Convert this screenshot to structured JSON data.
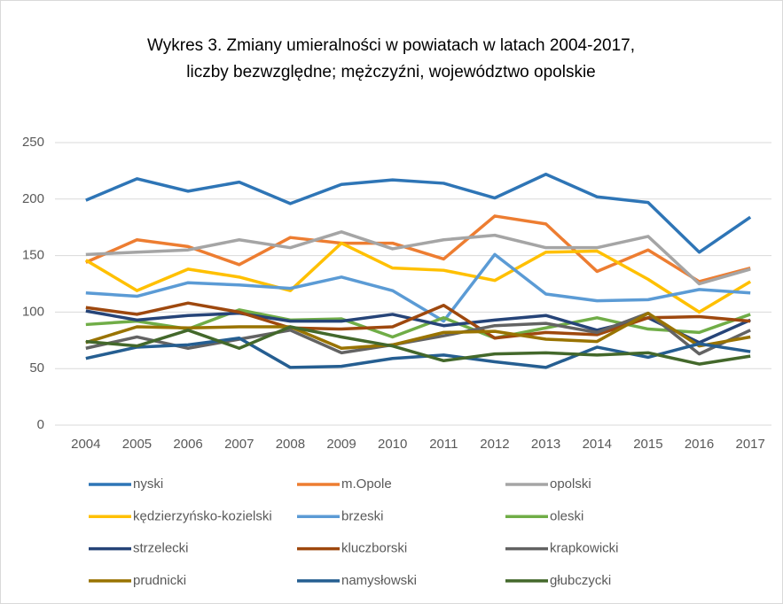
{
  "chart_data": {
    "type": "line",
    "title": [
      "Wykres 3. Zmiany umieralności w powiatach w latach 2004-2017,",
      "liczby bezwzględne; mężczyźni, województwo opolskie"
    ],
    "categories": [
      "2004",
      "2005",
      "2006",
      "2007",
      "2008",
      "2009",
      "2010",
      "2011",
      "2012",
      "2013",
      "2014",
      "2015",
      "2016",
      "2017"
    ],
    "ylim": [
      0,
      250
    ],
    "yticks": [
      0,
      50,
      100,
      150,
      200,
      250
    ],
    "grid": true,
    "legend": "bottom",
    "series": [
      {
        "name": "nyski",
        "color": "#2e75b6",
        "values": [
          199,
          218,
          207,
          215,
          196,
          213,
          217,
          214,
          201,
          222,
          202,
          197,
          153,
          184
        ]
      },
      {
        "name": "m.Opole",
        "color": "#ed7d31",
        "values": [
          144,
          164,
          158,
          142,
          166,
          161,
          161,
          147,
          185,
          178,
          136,
          155,
          127,
          139
        ]
      },
      {
        "name": "opolski",
        "color": "#a5a5a5",
        "values": [
          151,
          153,
          155,
          164,
          157,
          171,
          156,
          164,
          168,
          157,
          157,
          167,
          125,
          138
        ]
      },
      {
        "name": "kędzierzyńsko-kozielski",
        "color": "#ffc000",
        "values": [
          146,
          119,
          138,
          131,
          119,
          161,
          139,
          137,
          128,
          153,
          154,
          129,
          100,
          127
        ]
      },
      {
        "name": "brzeski",
        "color": "#5b9bd5",
        "values": [
          117,
          114,
          126,
          124,
          121,
          131,
          119,
          92,
          151,
          116,
          110,
          111,
          120,
          117
        ]
      },
      {
        "name": "oleski",
        "color": "#70ad47",
        "values": [
          89,
          92,
          85,
          102,
          93,
          94,
          78,
          95,
          77,
          86,
          95,
          85,
          82,
          98
        ]
      },
      {
        "name": "strzelecki",
        "color": "#264478",
        "values": [
          101,
          93,
          97,
          99,
          92,
          92,
          98,
          88,
          93,
          97,
          84,
          95,
          73,
          93
        ]
      },
      {
        "name": "kluczborski",
        "color": "#9e480e",
        "values": [
          104,
          98,
          108,
          100,
          86,
          85,
          87,
          106,
          77,
          82,
          80,
          95,
          96,
          92
        ]
      },
      {
        "name": "krapkowicki",
        "color": "#636363",
        "values": [
          68,
          78,
          68,
          76,
          84,
          64,
          71,
          79,
          88,
          90,
          82,
          99,
          63,
          84
        ]
      },
      {
        "name": "prudnicki",
        "color": "#997300",
        "values": [
          73,
          87,
          86,
          87,
          87,
          68,
          71,
          82,
          83,
          76,
          74,
          99,
          70,
          78
        ]
      },
      {
        "name": "namysłowski",
        "color": "#255e91",
        "values": [
          59,
          69,
          71,
          77,
          51,
          52,
          59,
          62,
          56,
          51,
          69,
          60,
          72,
          65
        ]
      },
      {
        "name": "głubczycki",
        "color": "#43682b",
        "values": [
          74,
          70,
          84,
          68,
          87,
          78,
          70,
          57,
          63,
          64,
          62,
          64,
          54,
          61
        ]
      }
    ]
  }
}
